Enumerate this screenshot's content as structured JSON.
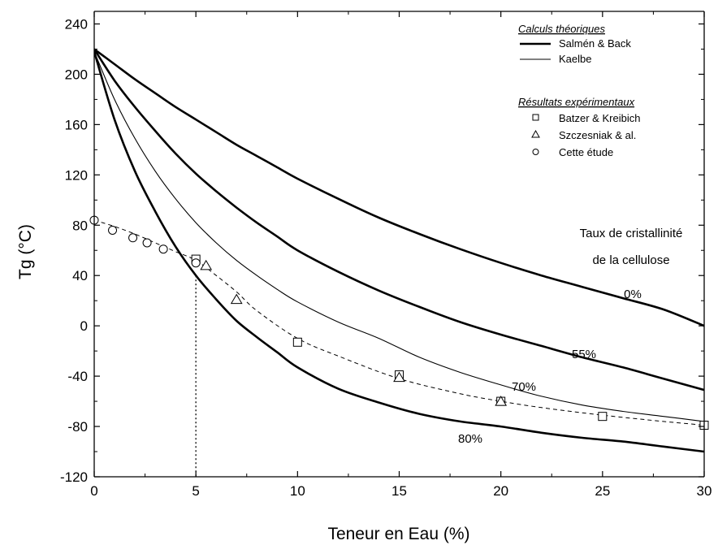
{
  "chart_data": {
    "type": "line",
    "xlabel": "Teneur en Eau (%)",
    "ylabel": "Tg (°C)",
    "xlim": [
      0,
      30
    ],
    "ylim": [
      -120,
      250
    ],
    "x_ticks": [
      0,
      5,
      10,
      15,
      20,
      25,
      30
    ],
    "y_ticks": [
      -120,
      -80,
      -40,
      0,
      40,
      80,
      120,
      160,
      200,
      240
    ],
    "x_tick_labels": [
      "0",
      "5",
      "10",
      "15",
      "20",
      "25",
      "30"
    ],
    "y_tick_labels": [
      "-120",
      "-80",
      "-40",
      "0",
      "40",
      "80",
      "120",
      "160",
      "200",
      "240"
    ],
    "grid": false,
    "legend": {
      "position": "top-right",
      "header_theory": "Calculs théoriques",
      "header_experimental": "Résultats expérimentaux",
      "entries_theory": [
        {
          "label": "Salmén & Back",
          "style": "thick"
        },
        {
          "label": "Kaelbe",
          "style": "thin"
        }
      ],
      "entries_experimental": [
        {
          "label": "Batzer & Kreibich",
          "marker": "square"
        },
        {
          "label": "Szczesniak & al.",
          "marker": "triangle"
        },
        {
          "label": "Cette étude",
          "marker": "circle"
        }
      ]
    },
    "annotations": {
      "cristallinity_line1": "Taux de cristallinité",
      "cristallinity_line2": "de la cellulose",
      "label_0": "0%",
      "label_55": "55%",
      "label_70": "70%",
      "label_80": "80%"
    },
    "curve_x": [
      0,
      1,
      2,
      3,
      4,
      5,
      6,
      7,
      8,
      9,
      10,
      12,
      14,
      16,
      18,
      20,
      22,
      24,
      26,
      28,
      30
    ],
    "series": [
      {
        "name": "Salmén & Back",
        "crystallinity": "0%",
        "style": "thick",
        "values": [
          220,
          208,
          196,
          185,
          174,
          164,
          154,
          144,
          135,
          126,
          117,
          101,
          86,
          73,
          61,
          50,
          40,
          31,
          22,
          13,
          0
        ]
      },
      {
        "name": "Salmén & Back",
        "crystallinity": "55%",
        "style": "thick",
        "values": [
          220,
          195,
          174,
          155,
          137,
          121,
          107,
          94,
          82,
          71,
          60,
          43,
          28,
          15,
          3,
          -7,
          -16,
          -25,
          -33,
          -42,
          -51
        ]
      },
      {
        "name": "Kaelbe",
        "crystallinity": "70%",
        "style": "thin",
        "values": [
          218,
          180,
          149,
          123,
          101,
          82,
          66,
          52,
          40,
          29,
          19,
          3,
          -10,
          -25,
          -37,
          -47,
          -56,
          -63,
          -68,
          -72,
          -76
        ]
      },
      {
        "name": "Salmén & Back",
        "crystallinity": "80%",
        "style": "thick",
        "values": [
          218,
          164,
          123,
          91,
          63,
          40,
          21,
          4,
          -9,
          -21,
          -33,
          -50,
          -61,
          -70,
          -76,
          -80,
          -85,
          -89,
          -92,
          -96,
          -100
        ]
      }
    ],
    "fit_line": {
      "style": "dashed",
      "x": [
        0,
        1,
        2,
        3,
        4,
        5,
        6,
        7,
        8,
        10,
        12,
        15,
        18,
        20,
        22,
        25,
        28,
        30
      ],
      "y": [
        84,
        79,
        73,
        66,
        59,
        52,
        40,
        27,
        12,
        -10,
        -24,
        -42,
        -54,
        -60,
        -65,
        -71,
        -76,
        -79
      ]
    },
    "points": [
      {
        "series": "Batzer & Kreibich",
        "marker": "square",
        "x": [
          5,
          10,
          15,
          20,
          25,
          30
        ],
        "y": [
          53,
          -13,
          -39,
          -60,
          -72,
          -79
        ]
      },
      {
        "series": "Szczesniak & al.",
        "marker": "triangle",
        "x": [
          5.5,
          7,
          15,
          20
        ],
        "y": [
          48,
          21,
          -41,
          -60
        ]
      },
      {
        "series": "Cette étude",
        "marker": "circle",
        "x": [
          0,
          0.9,
          1.9,
          2.6,
          3.4,
          5
        ],
        "y": [
          84,
          76,
          70,
          66,
          61,
          50
        ]
      }
    ],
    "reference_line": {
      "x": 5,
      "y": 40,
      "style": "dotted"
    }
  }
}
